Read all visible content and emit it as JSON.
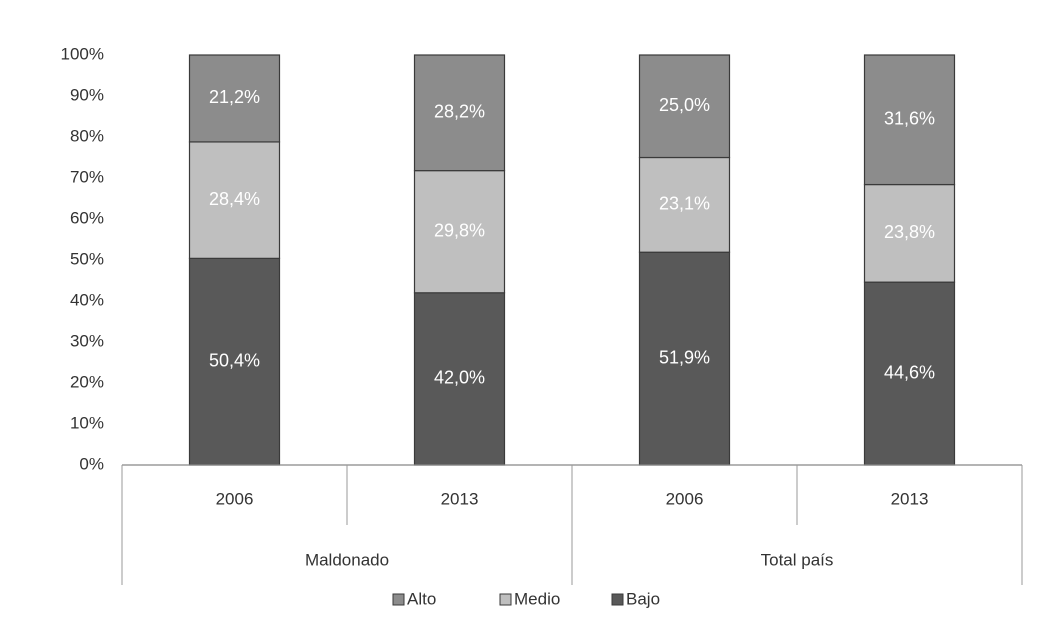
{
  "chart_data": {
    "type": "stacked_bar",
    "categories": [
      "2006",
      "2013",
      "2006",
      "2013"
    ],
    "group_labels": [
      "Maldonado",
      "Total país"
    ],
    "series": [
      {
        "name": "Bajo",
        "color": "#595959",
        "values": [
          50.4,
          42.0,
          51.9,
          44.6
        ],
        "value_labels": [
          "50,4%",
          "42,0%",
          "51,9%",
          "44,6%"
        ]
      },
      {
        "name": "Medio",
        "color": "#bfbfbf",
        "values": [
          28.4,
          29.8,
          23.1,
          23.8
        ],
        "value_labels": [
          "28,4%",
          "29,8%",
          "23,1%",
          "23,8%"
        ]
      },
      {
        "name": "Alto",
        "color": "#8c8c8c",
        "values": [
          21.2,
          28.2,
          25.0,
          31.6
        ],
        "value_labels": [
          "21,2%",
          "28,2%",
          "25,0%",
          "31,6%"
        ]
      }
    ],
    "ylim": [
      0,
      100
    ],
    "yticks": [
      {
        "value": 0,
        "label": "0%"
      },
      {
        "value": 10,
        "label": "10%"
      },
      {
        "value": 20,
        "label": "20%"
      },
      {
        "value": 30,
        "label": "30%"
      },
      {
        "value": 40,
        "label": "40%"
      },
      {
        "value": 50,
        "label": "50%"
      },
      {
        "value": 60,
        "label": "60%"
      },
      {
        "value": 70,
        "label": "70%"
      },
      {
        "value": 80,
        "label": "80%"
      },
      {
        "value": 90,
        "label": "90%"
      },
      {
        "value": 100,
        "label": "100%"
      }
    ]
  }
}
